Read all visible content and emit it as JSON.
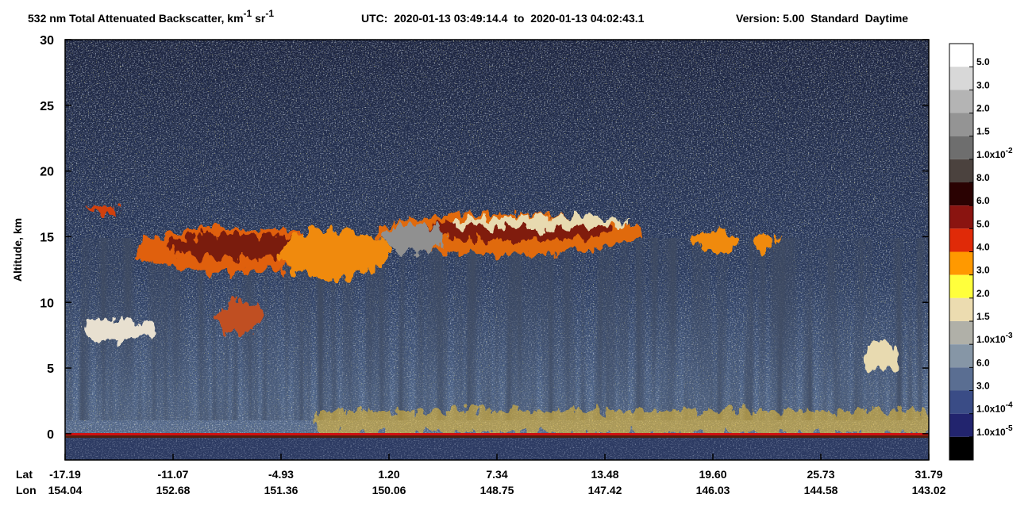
{
  "chart_data": {
    "type": "curtain",
    "title": {
      "main": "532 nm Total Attenuated Backscatter, km",
      "unit_exp": "-1",
      "unit2": " sr",
      "unit2_exp": "-1",
      "time": "UTC:  2020-01-13 03:49:14.4  to  2020-01-13 04:02:43.1",
      "version": "Version: 5.00  Standard  Daytime"
    },
    "ylabel": "Altitude, km",
    "ylim": [
      -2,
      30
    ],
    "yticks": [
      0,
      5,
      10,
      15,
      20,
      25,
      30
    ],
    "x_rows": [
      {
        "name": "Lat",
        "labels": [
          "-17.19",
          "-11.07",
          "-4.93",
          "1.20",
          "7.34",
          "13.48",
          "19.60",
          "25.73",
          "31.79"
        ]
      },
      {
        "name": "Lon",
        "labels": [
          "154.04",
          "152.68",
          "151.36",
          "150.06",
          "148.75",
          "147.42",
          "146.03",
          "144.58",
          "143.02"
        ]
      }
    ],
    "colorbar": {
      "colors": [
        "#ffffff",
        "#d8d8d8",
        "#b4b4b4",
        "#949494",
        "#6e6e6e",
        "#4b423e",
        "#2a0202",
        "#8a1410",
        "#e02a08",
        "#ff9900",
        "#ffff3c",
        "#ecdcb0",
        "#b0b0a8",
        "#8696a6",
        "#5a6e92",
        "#3a4c86",
        "#22246e",
        "#000000"
      ],
      "labels": [
        {
          "text": "5.0"
        },
        {
          "text": "3.0"
        },
        {
          "text": "2.0"
        },
        {
          "text": "1.5"
        },
        {
          "text": "1.0x10",
          "sup": "-2"
        },
        {
          "text": "8.0"
        },
        {
          "text": "6.0"
        },
        {
          "text": "5.0"
        },
        {
          "text": "4.0"
        },
        {
          "text": "3.0"
        },
        {
          "text": "2.0"
        },
        {
          "text": "1.5"
        },
        {
          "text": "1.0x10",
          "sup": "-3"
        },
        {
          "text": "6.0"
        },
        {
          "text": "3.0"
        },
        {
          "text": "1.0x10",
          "sup": "-4"
        },
        {
          "text": "1.0x10",
          "sup": "-5"
        }
      ]
    }
  }
}
